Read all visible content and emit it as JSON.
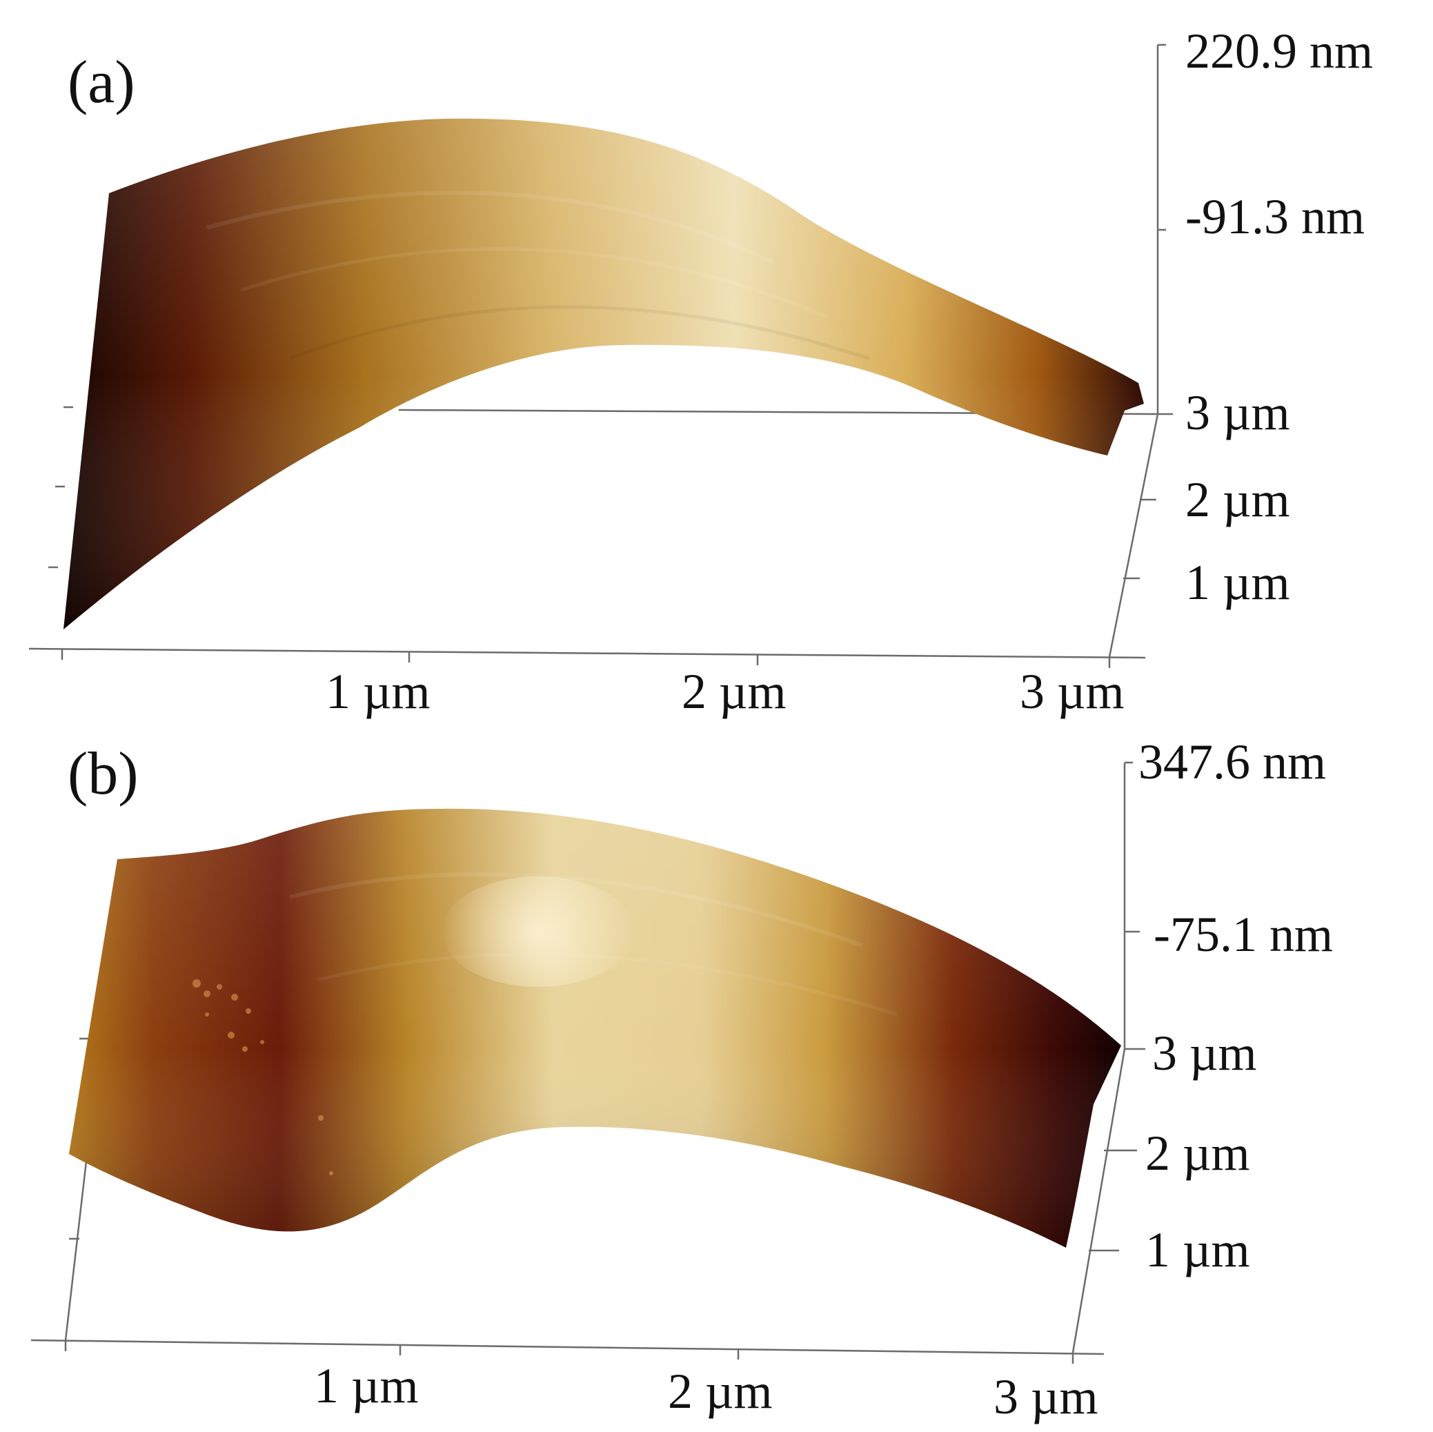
{
  "panels": [
    {
      "label": "(a)",
      "z_ticks": [
        "220.9 nm",
        "-91.3 nm"
      ],
      "y_ticks": [
        "3 µm",
        "2 µm",
        "1 µm"
      ],
      "x_ticks": [
        "1 µm",
        "2 µm",
        "3 µm"
      ]
    },
    {
      "label": "(b)",
      "z_ticks": [
        "347.6 nm",
        "-75.1 nm"
      ],
      "y_ticks": [
        "3 µm",
        "2 µm",
        "1 µm"
      ],
      "x_ticks": [
        "1 µm",
        "2 µm",
        "3 µm"
      ]
    }
  ],
  "colors": {
    "surface_dark": "#1a0503",
    "surface_mid": "#8a3a0c",
    "surface_gold": "#c8981e",
    "surface_light": "#f2e3b3",
    "axis": "#6b6b6b"
  }
}
